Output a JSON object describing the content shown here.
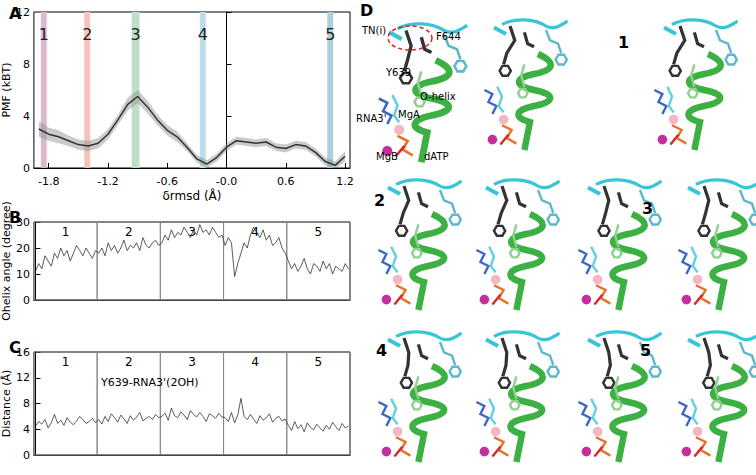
{
  "chart_data": [
    {
      "title": "A",
      "type": "line",
      "x": [
        -1.9,
        -1.8,
        -1.7,
        -1.6,
        -1.5,
        -1.4,
        -1.3,
        -1.2,
        -1.1,
        -1.0,
        -0.9,
        -0.8,
        -0.7,
        -0.6,
        -0.5,
        -0.4,
        -0.3,
        -0.2,
        -0.1,
        0.0,
        0.1,
        0.2,
        0.3,
        0.4,
        0.5,
        0.6,
        0.7,
        0.8,
        0.9,
        1.0,
        1.1,
        1.2
      ],
      "values": [
        3.0,
        2.6,
        2.4,
        2.1,
        1.8,
        1.7,
        1.9,
        2.6,
        3.7,
        4.9,
        5.5,
        4.7,
        3.7,
        2.9,
        2.4,
        1.6,
        0.7,
        0.3,
        0.8,
        1.6,
        2.1,
        2.0,
        1.9,
        2.0,
        1.6,
        1.5,
        1.8,
        1.7,
        1.2,
        0.5,
        0.2,
        0.9
      ],
      "errors": [
        0.6,
        0.5,
        0.5,
        0.4,
        0.4,
        0.4,
        0.4,
        0.4,
        0.4,
        0.5,
        0.5,
        0.5,
        0.4,
        0.4,
        0.4,
        0.3,
        0.3,
        0.3,
        0.3,
        0.3,
        0.3,
        0.3,
        0.3,
        0.3,
        0.3,
        0.3,
        0.3,
        0.3,
        0.3,
        0.3,
        0.3,
        0.4
      ],
      "color": "#333333",
      "xlabel": "δrmsd (Å)",
      "ylabel": "PMF (kBT)",
      "xlim": [
        -1.95,
        1.25
      ],
      "ylim": [
        0,
        12
      ],
      "xticks": [
        -1.8,
        -1.2,
        -0.6,
        {
          "value": 0,
          "label": "-0.0"
        },
        0.6,
        1.2
      ],
      "yticks": [
        0,
        4,
        8,
        12
      ],
      "regions": [
        {
          "label": "1",
          "from": -1.88,
          "to": -1.82,
          "color": "#dcb9cc"
        },
        {
          "label": "2",
          "from": -1.44,
          "to": -1.38,
          "color": "#f6c4bc"
        },
        {
          "label": "3",
          "from": -0.96,
          "to": -0.88,
          "color": "#bfe0c6"
        },
        {
          "label": "4",
          "from": -0.27,
          "to": -0.21,
          "color": "#bfdcea"
        },
        {
          "label": "5",
          "from": 1.02,
          "to": 1.08,
          "color": "#accfdb"
        }
      ],
      "grid": false
    },
    {
      "title": "B",
      "type": "line",
      "values": [
        11,
        14,
        12,
        17,
        15,
        13,
        18,
        16,
        20,
        17,
        19,
        15,
        18,
        21,
        19,
        17,
        20,
        18,
        16,
        19,
        18,
        20,
        17,
        22,
        19,
        21,
        18,
        20,
        23,
        19,
        21,
        20,
        22,
        19,
        24,
        21,
        20,
        22,
        23,
        21,
        22,
        25,
        23,
        27,
        24,
        26,
        25,
        28,
        26,
        24,
        27,
        25,
        29,
        26,
        27,
        25,
        28,
        26,
        24,
        25,
        21,
        24,
        22,
        9,
        14,
        18,
        22,
        20,
        25,
        28,
        26,
        24,
        27,
        23,
        25,
        21,
        22,
        24,
        20,
        18,
        15,
        12,
        14,
        11,
        13,
        16,
        12,
        10,
        14,
        13,
        11,
        15,
        12,
        14,
        10,
        13,
        12,
        11,
        14,
        12
      ],
      "color": "#333333",
      "ylabel": "Ohelix angle (degree)",
      "xlim": [
        -0.5,
        99.5
      ],
      "ylim": [
        0,
        30
      ],
      "yticks": [
        0,
        10,
        20,
        30
      ],
      "sections": [
        {
          "label": "1",
          "from": -0.5,
          "to": 19.5
        },
        {
          "label": "2",
          "from": 19.5,
          "to": 39.5
        },
        {
          "label": "3",
          "from": 39.5,
          "to": 59.5
        },
        {
          "label": "4",
          "from": 59.5,
          "to": 79.5
        },
        {
          "label": "5",
          "from": 79.5,
          "to": 99.5
        }
      ],
      "tick_labels": "y",
      "grid": false
    },
    {
      "title": "C",
      "subtitle": "Y639-RNA3'(2OH)",
      "type": "line",
      "values": [
        4.5,
        5.2,
        4.8,
        5.5,
        4.2,
        5.0,
        6.3,
        4.9,
        5.4,
        4.6,
        5.8,
        5.1,
        4.7,
        5.3,
        6.0,
        5.5,
        4.9,
        5.2,
        5.7,
        5.0,
        5.5,
        4.8,
        6.0,
        5.2,
        6.4,
        5.8,
        5.1,
        6.2,
        5.6,
        4.9,
        6.1,
        5.4,
        5.9,
        6.6,
        5.3,
        5.7,
        6.0,
        5.5,
        6.3,
        5.8,
        6.0,
        6.5,
        5.4,
        7.3,
        6.1,
        5.8,
        6.7,
        6.2,
        5.5,
        6.9,
        6.3,
        5.9,
        6.6,
        6.0,
        5.2,
        6.4,
        6.1,
        5.7,
        6.5,
        5.9,
        5.8,
        5.2,
        6.6,
        5.0,
        6.2,
        8.8,
        6.0,
        5.5,
        6.3,
        5.6,
        4.9,
        6.1,
        5.4,
        5.8,
        6.4,
        5.1,
        5.7,
        6.0,
        5.3,
        5.6,
        4.6,
        3.8,
        5.2,
        4.1,
        4.7,
        3.6,
        5.0,
        4.3,
        3.9,
        4.8,
        4.2,
        3.7,
        4.6,
        4.0,
        5.1,
        4.4,
        3.8,
        4.9,
        4.2,
        4.5
      ],
      "color": "#333333",
      "ylabel": "Distance (Å)",
      "xlim": [
        -0.5,
        99.5
      ],
      "ylim": [
        0,
        16
      ],
      "yticks": [
        0,
        4,
        8,
        12,
        16
      ],
      "sections": [
        {
          "label": "1",
          "from": -0.5,
          "to": 19.5
        },
        {
          "label": "2",
          "from": 19.5,
          "to": 39.5
        },
        {
          "label": "3",
          "from": 39.5,
          "to": 59.5
        },
        {
          "label": "4",
          "from": 59.5,
          "to": 79.5
        },
        {
          "label": "5",
          "from": 79.5,
          "to": 99.5
        }
      ],
      "tick_labels": "y",
      "grid": false
    }
  ],
  "diagram": {
    "label": "D",
    "annotations": [
      "TN(i)",
      "F644",
      "Y639",
      "O-helix",
      "RNA3'",
      "MgA",
      "MgB",
      "dATP"
    ],
    "views": [
      "1",
      "2",
      "3",
      "4",
      "5"
    ]
  }
}
